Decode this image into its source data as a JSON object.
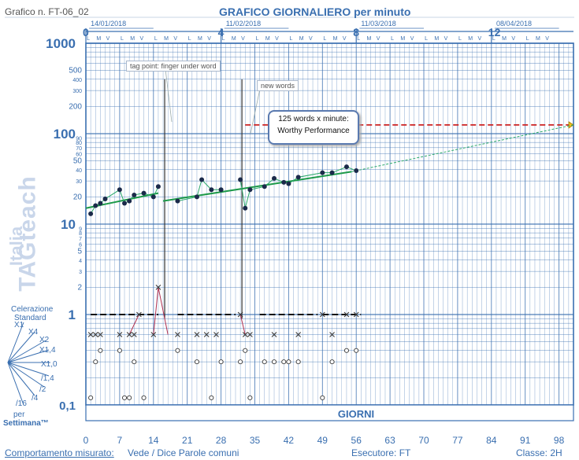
{
  "header": {
    "chart_id": "Grafico n. FT-06_02",
    "title": "GRAFICO GIORNALIERO per minuto"
  },
  "top_axis": {
    "week_numbers": [
      "0",
      "4",
      "8",
      "12"
    ],
    "dates": [
      "14/01/2018",
      "11/02/2018",
      "11/03/2018",
      "08/04/2018"
    ],
    "day_pattern": [
      "L",
      "M",
      "V"
    ]
  },
  "y_axis": {
    "scale": "log",
    "major_labels": [
      "1000",
      "100",
      "10",
      "1",
      "0,1"
    ],
    "minor_labels": [
      "500",
      "400",
      "300",
      "200",
      "90",
      "80",
      "70",
      "60",
      "50",
      "40",
      "30",
      "20",
      "9",
      "8",
      "7",
      "6",
      "5",
      "4",
      "3",
      "2"
    ]
  },
  "x_axis": {
    "tick_labels": [
      "0",
      "7",
      "14",
      "21",
      "28",
      "35",
      "42",
      "49",
      "56",
      "63",
      "70",
      "77",
      "84",
      "91",
      "98"
    ],
    "name": "GIORNI"
  },
  "annotations": {
    "tag_point": "tag point: finger under word",
    "new_words": "new words",
    "aim_line1": "125 words x minute:",
    "aim_line2": "Worthy Performance"
  },
  "watermark": {
    "line1": "TAGteach",
    "line2": "Italia"
  },
  "celeration_fan": {
    "title1": "Celerazione",
    "title2": "Standard",
    "labels": [
      "X1",
      "X4",
      "X2",
      "X1,4",
      "X1,0",
      "/1,4",
      "/2",
      "/4",
      "/16"
    ],
    "footer1": "per",
    "footer2": "Settimana™"
  },
  "footer": {
    "behavior_label": "Comportamento misurato:",
    "behavior_value": "Vede  / Dice Parole comuni",
    "performer": "Esecutore: FT",
    "class": "Classe: 2H"
  },
  "colors": {
    "grid": "#3a6fb0",
    "correct_dot": "#1b2a4a",
    "trend": "#1e9a4a",
    "aim": "#cc2222",
    "errors": "#3a3a3a",
    "error_link": "#b03050"
  },
  "chart_data": {
    "type": "scatter",
    "title": "GRAFICO GIORNALIERO per minuto",
    "xlabel": "GIORNI",
    "ylabel": "",
    "xlim": [
      0,
      101
    ],
    "ylim": [
      0.1,
      1000
    ],
    "y_scale": "log",
    "series": [],
    "correct": {
      "x": [
        1,
        2,
        3,
        4,
        7,
        8,
        9,
        10,
        12,
        14,
        15,
        19,
        23,
        24,
        26,
        28,
        32,
        33,
        34,
        37,
        39,
        41,
        42,
        44,
        49,
        51,
        54,
        56
      ],
      "y": [
        13,
        16,
        17,
        19,
        24,
        17,
        18,
        21,
        22,
        20,
        26,
        18,
        20,
        31,
        24,
        24,
        31,
        15,
        24,
        26,
        32,
        29,
        28,
        33,
        37,
        37,
        43,
        39
      ]
    },
    "errors": {
      "x": [
        1,
        2,
        3,
        7,
        9,
        10,
        11,
        14,
        15,
        19,
        23,
        25,
        27,
        32,
        33,
        34,
        39,
        44,
        49,
        51,
        54,
        56
      ],
      "y": [
        0.6,
        0.6,
        0.6,
        0.6,
        0.6,
        0.6,
        1,
        0.6,
        2,
        0.6,
        0.6,
        0.6,
        0.6,
        1,
        0.6,
        0.6,
        0.6,
        0.6,
        1,
        0.6,
        1,
        1
      ]
    },
    "omissions": {
      "x": [
        1,
        2,
        3,
        7,
        8,
        9,
        10,
        12,
        19,
        23,
        26,
        28,
        32,
        33,
        34,
        37,
        39,
        41,
        42,
        44,
        49,
        51,
        54,
        56
      ],
      "y": [
        0.12,
        0.3,
        0.4,
        0.4,
        0.12,
        0.12,
        0.3,
        0.12,
        0.4,
        0.3,
        0.12,
        0.3,
        0.3,
        0.4,
        0.12,
        0.3,
        0.3,
        0.3,
        0.3,
        0.3,
        0.12,
        0.3,
        0.4,
        0.4
      ]
    },
    "record_floor": {
      "segments": [
        [
          1,
          15
        ],
        [
          19,
          31
        ],
        [
          36,
          48
        ],
        [
          49,
          57
        ]
      ],
      "y": 1
    },
    "trend_lines": [
      {
        "x": [
          0,
          15
        ],
        "y": [
          15,
          22
        ]
      },
      {
        "x": [
          16,
          55
        ],
        "y": [
          18,
          38
        ]
      }
    ],
    "trend_projection": {
      "x": [
        55,
        101
      ],
      "y": [
        38,
        125
      ]
    },
    "aim": {
      "x": [
        33,
        101
      ],
      "y": [
        125,
        125
      ]
    },
    "phase_lines_x": [
      16,
      32
    ],
    "grid": true
  }
}
